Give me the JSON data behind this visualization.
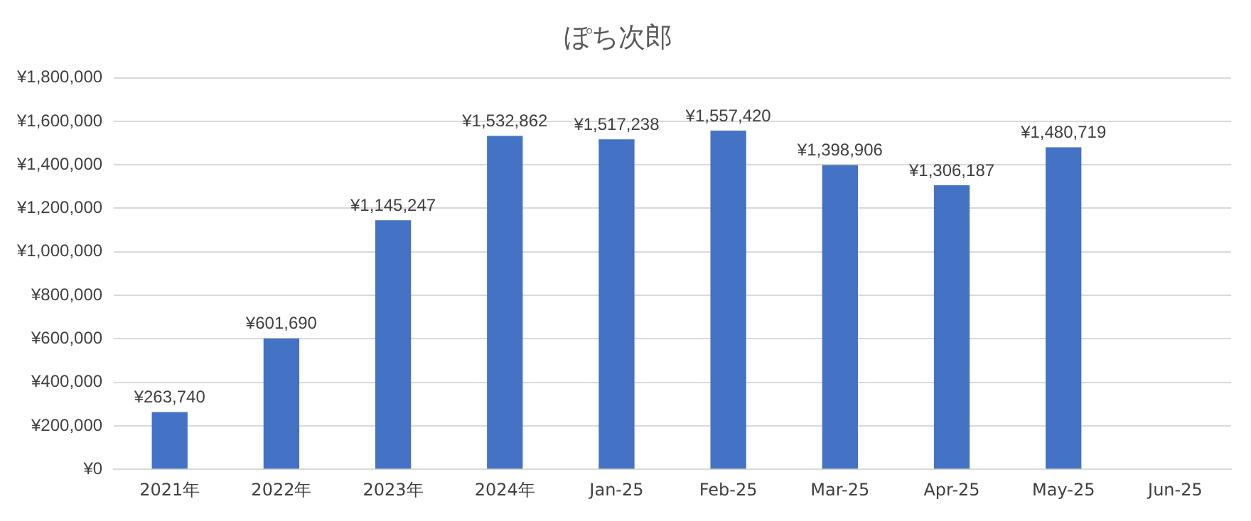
{
  "chart_data": {
    "type": "bar",
    "title": "ぽち次郎",
    "categories": [
      "2021年",
      "2022年",
      "2023年",
      "2024年",
      "Jan-25",
      "Feb-25",
      "Mar-25",
      "Apr-25",
      "May-25",
      "Jun-25"
    ],
    "values": [
      263740,
      601690,
      1145247,
      1532862,
      1517238,
      1557420,
      1398906,
      1306187,
      1480719,
      null
    ],
    "value_labels": [
      "¥263,740",
      "¥601,690",
      "¥1,145,247",
      "¥1,532,862",
      "¥1,517,238",
      "¥1,557,420",
      "¥1,398,906",
      "¥1,306,187",
      "¥1,480,719",
      null
    ],
    "color": "#4472c4",
    "ylim": [
      0,
      1800000
    ],
    "yticks": [
      {
        "value": 0,
        "label": "¥0"
      },
      {
        "value": 200000,
        "label": "¥200,000"
      },
      {
        "value": 400000,
        "label": "¥400,000"
      },
      {
        "value": 600000,
        "label": "¥600,000"
      },
      {
        "value": 800000,
        "label": "¥800,000"
      },
      {
        "value": 1000000,
        "label": "¥1,000,000"
      },
      {
        "value": 1200000,
        "label": "¥1,200,000"
      },
      {
        "value": 1400000,
        "label": "¥1,400,000"
      },
      {
        "value": 1600000,
        "label": "¥1,600,000"
      },
      {
        "value": 1800000,
        "label": "¥1,800,000"
      }
    ],
    "grid": "y"
  }
}
